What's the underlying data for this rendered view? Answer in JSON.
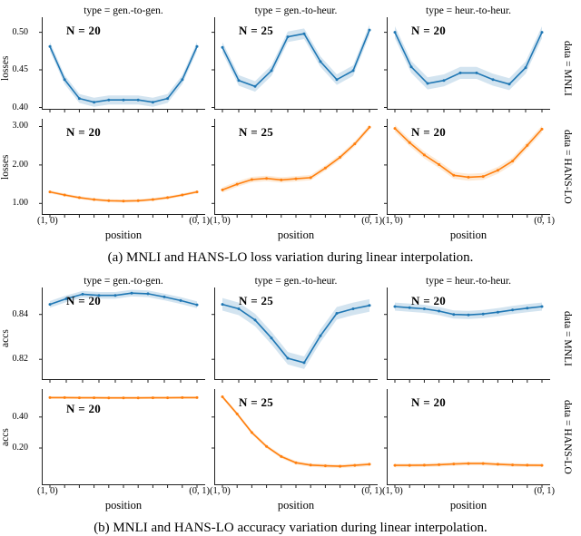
{
  "colors": {
    "blue": "#1f77b4",
    "blue_band": "#aecde4",
    "orange": "#ff7f0e",
    "orange_band": "#fcd8b4",
    "axis": "#222222"
  },
  "chart_data": [
    {
      "figure": "a",
      "type": "line",
      "caption": "(a) MNLI and HANS-LO loss variation during linear interpolation.",
      "col_titles": [
        "type = gen.-to-gen.",
        "type = gen.-to-heur.",
        "type = heur.-to-heur."
      ],
      "xlabel": "position",
      "xtick_labels": [
        "(1, 0)",
        "(0, 1)"
      ],
      "rows": [
        {
          "row_label": "data = MNLI",
          "ylabel": "losses",
          "ylim": [
            0.397,
            0.52
          ],
          "yticks": [
            0.4,
            0.45,
            0.5
          ],
          "ytick_labels": [
            "0.40",
            "0.45",
            "0.50"
          ],
          "color": "#1f77b4",
          "band_color": "#aecde4",
          "cells": [
            {
              "annotation": "N = 20",
              "band": 0.006,
              "values": [
                0.481,
                0.437,
                0.412,
                0.407,
                0.41,
                0.41,
                0.41,
                0.407,
                0.412,
                0.437,
                0.481
              ]
            },
            {
              "annotation": "N = 25",
              "band": 0.007,
              "values": [
                0.48,
                0.436,
                0.428,
                0.449,
                0.494,
                0.498,
                0.461,
                0.437,
                0.449,
                0.503
              ]
            },
            {
              "annotation": "N = 20",
              "band": 0.008,
              "values": [
                0.5,
                0.454,
                0.432,
                0.436,
                0.446,
                0.446,
                0.437,
                0.431,
                0.453,
                0.5
              ]
            }
          ]
        },
        {
          "row_label": "data = HANS-LO",
          "ylabel": "losses",
          "ylim": [
            0.7,
            3.2
          ],
          "yticks": [
            1.0,
            2.0,
            3.0
          ],
          "ytick_labels": [
            "1.00",
            "2.00",
            "3.00"
          ],
          "color": "#ff7f0e",
          "band_color": "#fcd8b4",
          "cells": [
            {
              "annotation": "N = 20",
              "band": 0.04,
              "values": [
                1.3,
                1.22,
                1.15,
                1.1,
                1.07,
                1.06,
                1.07,
                1.1,
                1.15,
                1.22,
                1.3
              ]
            },
            {
              "annotation": "N = 25",
              "band": 0.07,
              "values": [
                1.35,
                1.5,
                1.62,
                1.65,
                1.61,
                1.64,
                1.67,
                1.92,
                2.2,
                2.55,
                2.98
              ]
            },
            {
              "annotation": "N = 20",
              "band": 0.09,
              "values": [
                2.95,
                2.58,
                2.26,
                2.01,
                1.73,
                1.68,
                1.7,
                1.86,
                2.1,
                2.51,
                2.93
              ]
            }
          ]
        }
      ]
    },
    {
      "figure": "b",
      "type": "line",
      "caption": "(b) MNLI and HANS-LO accuracy variation during linear interpolation.",
      "col_titles": [
        "type = gen.-to-gen.",
        "type = gen.-to-heur.",
        "type = heur.-to-heur."
      ],
      "xlabel": "position",
      "xtick_labels": [
        "(1, 0)",
        "(0, 1)"
      ],
      "rows": [
        {
          "row_label": "data = MNLI",
          "ylabel": "accs",
          "ylim": [
            0.8108,
            0.852
          ],
          "yticks": [
            0.82,
            0.84
          ],
          "ytick_labels": [
            "0.82",
            "0.84"
          ],
          "color": "#1f77b4",
          "band_color": "#aecde4",
          "cells": [
            {
              "annotation": "N = 20",
              "band": 0.0015,
              "values": [
                0.8445,
                0.847,
                0.849,
                0.8485,
                0.8485,
                0.8495,
                0.8492,
                0.8478,
                0.8462,
                0.8443
              ]
            },
            {
              "annotation": "N = 25",
              "band": 0.0028,
              "values": [
                0.8445,
                0.8425,
                0.8375,
                0.8295,
                0.8205,
                0.8185,
                0.8305,
                0.8405,
                0.8425,
                0.844
              ]
            },
            {
              "annotation": "N = 20",
              "band": 0.0018,
              "values": [
                0.8435,
                0.843,
                0.8425,
                0.8415,
                0.84,
                0.8398,
                0.8402,
                0.841,
                0.842,
                0.8428,
                0.8435
              ]
            }
          ]
        },
        {
          "row_label": "data = HANS-LO",
          "ylabel": "accs",
          "ylim": [
            -0.04,
            0.58
          ],
          "yticks": [
            0.2,
            0.4
          ],
          "ytick_labels": [
            "0.20",
            "0.40"
          ],
          "color": "#ff7f0e",
          "band_color": "#fcd8b4",
          "cells": [
            {
              "annotation": "N = 20",
              "band": 0.008,
              "values": [
                0.525,
                0.525,
                0.524,
                0.524,
                0.523,
                0.523,
                0.523,
                0.524,
                0.524,
                0.525,
                0.525
              ]
            },
            {
              "annotation": "N = 25",
              "band": 0.012,
              "values": [
                0.53,
                0.42,
                0.3,
                0.21,
                0.145,
                0.105,
                0.09,
                0.085,
                0.082,
                0.088,
                0.095
              ]
            },
            {
              "annotation": "N = 20",
              "band": 0.012,
              "values": [
                0.088,
                0.088,
                0.089,
                0.092,
                0.097,
                0.1,
                0.1,
                0.095,
                0.091,
                0.089,
                0.088
              ]
            }
          ]
        }
      ]
    }
  ]
}
